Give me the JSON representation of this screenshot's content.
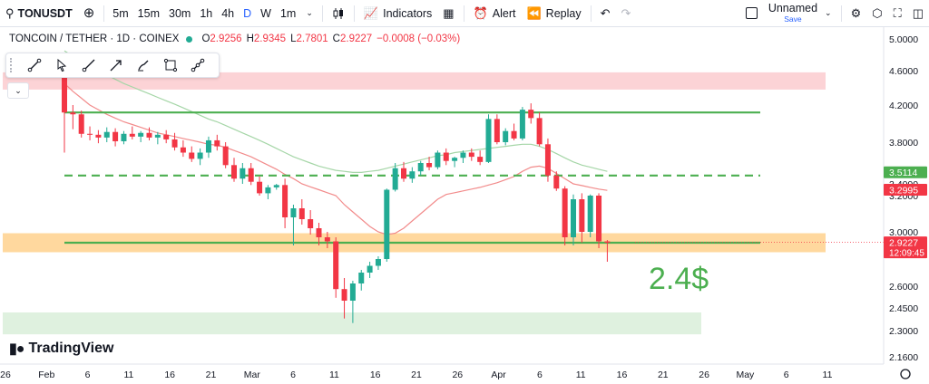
{
  "toolbar": {
    "symbol": "TONUSDT",
    "timeframes": [
      "5m",
      "15m",
      "30m",
      "1h",
      "4h",
      "D",
      "W",
      "1m"
    ],
    "active_timeframe": "D",
    "indicators_label": "Indicators",
    "alert_label": "Alert",
    "replay_label": "Replay",
    "layout_name": "Unnamed",
    "save_label": "Save"
  },
  "drawing_tools": [
    "trend-line-icon",
    "cursor-icon",
    "ray-icon",
    "arrow-icon",
    "brush-icon",
    "rectangle-icon",
    "path-icon"
  ],
  "legend": {
    "title": "TONCOIN / TETHER · 1D · COINEX",
    "o_label": "O",
    "o": "2.9256",
    "h_label": "H",
    "h": "2.9345",
    "l_label": "L",
    "l": "2.7801",
    "c_label": "C",
    "c": "2.9227",
    "change": "−0.0008 (−0.03%)"
  },
  "watermark": "TradingView",
  "annotation": "2.4$",
  "colors": {
    "up": "#22ab94",
    "down": "#f23645",
    "green_line": "#4caf50",
    "ma_red": "#f28b8b",
    "ma_green": "#a5d6a7"
  },
  "chart_data": {
    "type": "candlestick",
    "price_axis_ticks": [
      "5.0000",
      "4.6000",
      "4.2000",
      "3.8000",
      "3.4000",
      "3.2000",
      "3.0000",
      "2.6000",
      "2.4500",
      "2.3000",
      "2.1600"
    ],
    "price_axis_tick_values": [
      5.0,
      4.6,
      4.2,
      3.8,
      3.4,
      3.2,
      3.0,
      2.6,
      2.45,
      2.3,
      2.16
    ],
    "time_axis_ticks": [
      "26",
      "Feb",
      "6",
      "11",
      "16",
      "21",
      "Mar",
      "6",
      "11",
      "16",
      "21",
      "26",
      "Apr",
      "6",
      "11",
      "16",
      "21",
      "26",
      "May",
      "6",
      "11"
    ],
    "price_labels": {
      "ma_green": "3.5114",
      "ma_red": "3.2995",
      "last": "2.9227",
      "countdown": "12:09:45"
    },
    "zones": [
      {
        "name": "resistance-zone",
        "from": 4.38,
        "to": 4.58
      },
      {
        "name": "support-zone",
        "from": 2.85,
        "to": 2.99
      },
      {
        "name": "target-zone",
        "from": 2.28,
        "to": 2.42
      }
    ],
    "levels": [
      {
        "name": "upper-line",
        "price": 4.12,
        "style": "solid"
      },
      {
        "name": "middle-line",
        "price": 3.48,
        "style": "dashed"
      },
      {
        "name": "lower-line",
        "price": 2.92,
        "style": "solid"
      }
    ],
    "candles": [
      [
        4.6,
        4.78,
        3.7,
        4.12
      ],
      [
        4.12,
        4.2,
        3.94,
        4.1
      ],
      [
        4.1,
        4.14,
        3.85,
        3.89
      ],
      [
        3.89,
        3.97,
        3.82,
        3.88
      ],
      [
        3.88,
        3.93,
        3.79,
        3.85
      ],
      [
        3.85,
        3.96,
        3.8,
        3.91
      ],
      [
        3.91,
        3.95,
        3.76,
        3.81
      ],
      [
        3.81,
        3.92,
        3.78,
        3.89
      ],
      [
        3.89,
        3.97,
        3.83,
        3.86
      ],
      [
        3.86,
        3.92,
        3.8,
        3.9
      ],
      [
        3.9,
        3.96,
        3.82,
        3.85
      ],
      [
        3.85,
        3.91,
        3.78,
        3.88
      ],
      [
        3.88,
        3.93,
        3.79,
        3.83
      ],
      [
        3.83,
        3.9,
        3.72,
        3.75
      ],
      [
        3.75,
        3.82,
        3.66,
        3.7
      ],
      [
        3.7,
        3.76,
        3.61,
        3.64
      ],
      [
        3.64,
        3.74,
        3.58,
        3.7
      ],
      [
        3.7,
        3.86,
        3.65,
        3.82
      ],
      [
        3.82,
        3.88,
        3.72,
        3.76
      ],
      [
        3.76,
        3.8,
        3.55,
        3.58
      ],
      [
        3.58,
        3.65,
        3.42,
        3.45
      ],
      [
        3.45,
        3.6,
        3.4,
        3.55
      ],
      [
        3.55,
        3.6,
        3.38,
        3.42
      ],
      [
        3.42,
        3.47,
        3.2,
        3.24
      ],
      [
        3.24,
        3.38,
        3.18,
        3.34
      ],
      [
        3.34,
        3.4,
        3.3,
        3.38
      ],
      [
        3.38,
        3.45,
        3.02,
        3.08
      ],
      [
        3.08,
        3.15,
        2.9,
        3.13
      ],
      [
        3.13,
        3.18,
        3.04,
        3.07
      ],
      [
        3.07,
        3.12,
        2.98,
        3.02
      ],
      [
        3.02,
        3.05,
        2.9,
        2.96
      ],
      [
        2.96,
        3.0,
        2.88,
        2.93
      ],
      [
        2.93,
        2.96,
        2.52,
        2.58
      ],
      [
        2.58,
        2.66,
        2.38,
        2.5
      ],
      [
        2.5,
        2.64,
        2.35,
        2.62
      ],
      [
        2.62,
        2.72,
        2.57,
        2.7
      ],
      [
        2.7,
        2.78,
        2.66,
        2.75
      ],
      [
        2.75,
        2.82,
        2.72,
        2.8
      ],
      [
        2.8,
        3.32,
        2.78,
        3.3
      ],
      [
        3.3,
        3.6,
        3.27,
        3.55
      ],
      [
        3.55,
        3.61,
        3.42,
        3.45
      ],
      [
        3.45,
        3.56,
        3.41,
        3.52
      ],
      [
        3.52,
        3.62,
        3.48,
        3.6
      ],
      [
        3.6,
        3.66,
        3.53,
        3.56
      ],
      [
        3.56,
        3.72,
        3.54,
        3.7
      ],
      [
        3.7,
        3.74,
        3.58,
        3.62
      ],
      [
        3.62,
        3.66,
        3.56,
        3.65
      ],
      [
        3.65,
        3.72,
        3.6,
        3.7
      ],
      [
        3.7,
        3.74,
        3.62,
        3.66
      ],
      [
        3.66,
        3.72,
        3.58,
        3.61
      ],
      [
        3.61,
        4.1,
        3.6,
        4.05
      ],
      [
        4.05,
        4.1,
        3.78,
        3.8
      ],
      [
        3.8,
        3.95,
        3.77,
        3.92
      ],
      [
        3.92,
        4.0,
        3.82,
        3.84
      ],
      [
        3.84,
        4.18,
        3.82,
        4.15
      ],
      [
        4.15,
        4.22,
        4.0,
        4.06
      ],
      [
        4.06,
        4.12,
        3.76,
        3.78
      ],
      [
        3.78,
        3.84,
        3.42,
        3.48
      ],
      [
        3.48,
        3.52,
        3.28,
        3.32
      ],
      [
        3.32,
        3.36,
        2.9,
        2.96
      ],
      [
        2.96,
        3.22,
        2.9,
        3.18
      ],
      [
        3.18,
        3.24,
        2.92,
        3.0
      ],
      [
        3.0,
        3.22,
        2.96,
        3.2
      ],
      [
        3.2,
        3.24,
        2.88,
        2.93
      ],
      [
        2.93,
        2.94,
        2.78,
        2.92
      ]
    ],
    "ma_red_values": [
      4.45,
      4.36,
      4.28,
      4.2,
      4.15,
      4.1,
      4.06,
      4.02,
      3.99,
      3.96,
      3.93,
      3.9,
      3.88,
      3.86,
      3.84,
      3.82,
      3.8,
      3.78,
      3.77,
      3.75,
      3.72,
      3.69,
      3.66,
      3.62,
      3.58,
      3.54,
      3.49,
      3.45,
      3.4,
      3.35,
      3.3,
      3.25,
      3.2,
      3.15,
      3.11,
      3.07,
      3.03,
      3.0,
      2.98,
      2.99,
      3.02,
      3.06,
      3.1,
      3.14,
      3.18,
      3.22,
      3.25,
      3.28,
      3.31,
      3.34,
      3.38,
      3.41,
      3.44,
      3.47,
      3.52,
      3.56,
      3.57,
      3.55,
      3.5,
      3.45,
      3.4,
      3.37,
      3.34,
      3.31,
      3.29
    ],
    "ma_green_values": [
      4.85,
      4.78,
      4.72,
      4.66,
      4.6,
      4.55,
      4.5,
      4.45,
      4.41,
      4.37,
      4.33,
      4.29,
      4.25,
      4.21,
      4.17,
      4.13,
      4.09,
      4.05,
      4.02,
      3.98,
      3.94,
      3.9,
      3.86,
      3.82,
      3.78,
      3.74,
      3.7,
      3.66,
      3.63,
      3.6,
      3.57,
      3.55,
      3.53,
      3.52,
      3.51,
      3.51,
      3.52,
      3.53,
      3.55,
      3.57,
      3.59,
      3.61,
      3.63,
      3.65,
      3.67,
      3.68,
      3.7,
      3.71,
      3.72,
      3.73,
      3.74,
      3.75,
      3.76,
      3.77,
      3.78,
      3.78,
      3.76,
      3.73,
      3.69,
      3.65,
      3.61,
      3.58,
      3.56,
      3.54,
      3.52
    ]
  }
}
